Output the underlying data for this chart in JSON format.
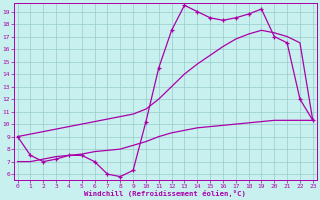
{
  "xlabel": "Windchill (Refroidissement éolien,°C)",
  "bg_color": "#c8f0ee",
  "line_color": "#aa00aa",
  "grid_color": "#99cccc",
  "x_hours": [
    0,
    1,
    2,
    3,
    4,
    5,
    6,
    7,
    8,
    9,
    10,
    11,
    12,
    13,
    14,
    15,
    16,
    17,
    18,
    19,
    20,
    21,
    22,
    23
  ],
  "line_main": [
    9.0,
    7.5,
    7.0,
    7.2,
    7.5,
    7.5,
    7.0,
    6.0,
    5.8,
    6.3,
    10.2,
    14.5,
    17.5,
    19.5,
    19.0,
    18.5,
    18.3,
    18.5,
    18.8,
    19.2,
    17.0,
    16.5,
    12.0,
    10.3
  ],
  "line_diag": [
    9.0,
    9.2,
    9.4,
    9.6,
    9.8,
    10.0,
    10.2,
    10.4,
    10.6,
    10.8,
    11.2,
    12.0,
    13.0,
    14.0,
    14.8,
    15.5,
    16.2,
    16.8,
    17.2,
    17.5,
    17.3,
    17.0,
    16.5,
    10.3
  ],
  "line_flat": [
    7.0,
    7.0,
    7.2,
    7.4,
    7.5,
    7.6,
    7.8,
    7.9,
    8.0,
    8.3,
    8.6,
    9.0,
    9.3,
    9.5,
    9.7,
    9.8,
    9.9,
    10.0,
    10.1,
    10.2,
    10.3,
    10.3,
    10.3,
    10.3
  ],
  "ylim_min": 5.5,
  "ylim_max": 19.7,
  "xlim_min": -0.3,
  "xlim_max": 23.3,
  "yticks": [
    6,
    7,
    8,
    9,
    10,
    11,
    12,
    13,
    14,
    15,
    16,
    17,
    18,
    19
  ],
  "xticks": [
    0,
    1,
    2,
    3,
    4,
    5,
    6,
    7,
    8,
    9,
    10,
    11,
    12,
    13,
    14,
    15,
    16,
    17,
    18,
    19,
    20,
    21,
    22,
    23
  ],
  "tick_fontsize": 4.5,
  "label_fontsize": 5.2
}
